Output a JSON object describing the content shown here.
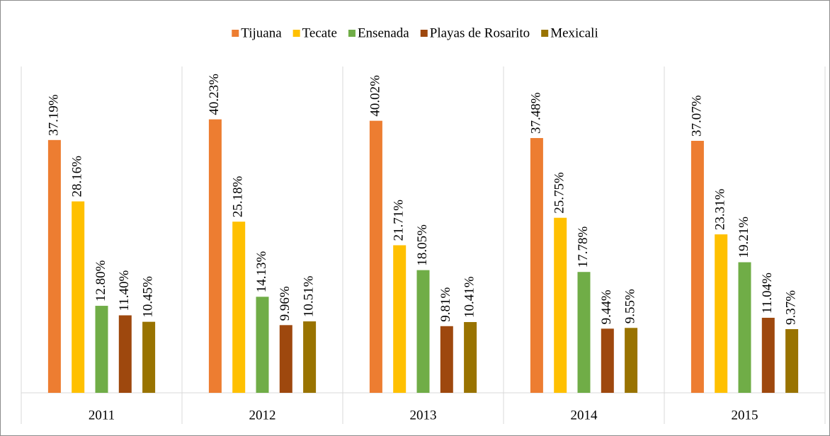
{
  "chart_data": {
    "type": "bar",
    "categories": [
      "2011",
      "2012",
      "2013",
      "2014",
      "2015"
    ],
    "series": [
      {
        "name": "Tijuana",
        "color": "#ED7D31",
        "values": [
          37.19,
          40.23,
          40.02,
          37.48,
          37.07
        ],
        "value_labels": [
          "37.19%",
          "40.23%",
          "40.02%",
          "37.48%",
          "37.07%"
        ]
      },
      {
        "name": "Tecate",
        "color": "#FFC000",
        "values": [
          28.16,
          25.18,
          21.71,
          25.75,
          23.31
        ],
        "value_labels": [
          "28.16%",
          "25.18%",
          "21.71%",
          "25.75%",
          "23.31%"
        ]
      },
      {
        "name": "Ensenada",
        "color": "#70AD47",
        "values": [
          12.8,
          14.13,
          18.05,
          17.78,
          19.21
        ],
        "value_labels": [
          "12.80%",
          "14.13%",
          "18.05%",
          "17.78%",
          "19.21%"
        ]
      },
      {
        "name": "Playas de Rosarito",
        "color": "#9E480E",
        "values": [
          11.4,
          9.96,
          9.81,
          9.44,
          11.04
        ],
        "value_labels": [
          "11.40%",
          "9.96%",
          "9.81%",
          "9.44%",
          "11.04%"
        ]
      },
      {
        "name": "Mexicali",
        "color": "#997300",
        "values": [
          10.45,
          10.51,
          10.41,
          9.55,
          9.37
        ],
        "value_labels": [
          "10.45%",
          "10.51%",
          "10.41%",
          "9.55%",
          "9.37%"
        ]
      }
    ],
    "ylim": [
      0,
      48
    ],
    "legend": "top"
  }
}
